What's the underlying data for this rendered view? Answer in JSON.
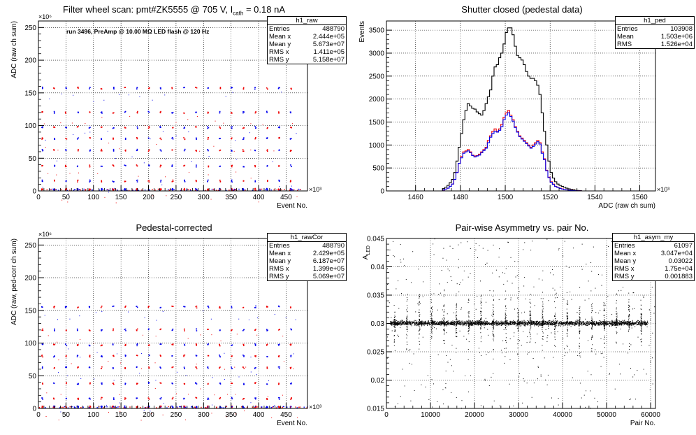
{
  "chart_data": [
    {
      "id": "p1",
      "type": "scatter",
      "title": "Filter wheel scan: pmt#ZK5555 @   705 V, I",
      "title_sub": "cath",
      "title_tail": " = 0.18 nA",
      "annotation": "run 3496, PreAmp @ 10.00 MΩ LED flash @  120 Hz",
      "xlabel": "Event No.",
      "ylabel": "ADC (raw ch sum)",
      "x_exponent": "×10³",
      "y_exponent": "×10⁶",
      "xlim": [
        0,
        488.79
      ],
      "ylim": [
        0,
        260
      ],
      "xticks": [
        0,
        50,
        100,
        150,
        200,
        250,
        300,
        350,
        400,
        450
      ],
      "yticks": [
        0,
        50,
        100,
        150,
        200,
        250
      ],
      "grid": true,
      "stats": {
        "name": "h1_raw",
        "rows": [
          [
            "Entries",
            "488790"
          ],
          [
            "Mean x",
            "2.444e+05"
          ],
          [
            "Mean y",
            "5.673e+07"
          ],
          [
            "RMS x",
            "1.411e+05"
          ],
          [
            "RMS y",
            "5.158e+07"
          ]
        ]
      },
      "levels": [
        157,
        120,
        97,
        80,
        62,
        38,
        15,
        2
      ],
      "level_colors": [
        "#0000ee",
        "#ee0000",
        "#0000ee",
        "#ee0000"
      ],
      "period": 21.5
    },
    {
      "id": "p2",
      "type": "line",
      "title": "Shutter closed (pedestal data)",
      "xlabel": "ADC (raw ch sum)",
      "ylabel": "Events",
      "x_exponent": "×10³",
      "xlim": [
        1447,
        1567
      ],
      "ylim": [
        0,
        3700
      ],
      "xticks": [
        1460,
        1480,
        1500,
        1520,
        1540,
        1560
      ],
      "yticks": [
        0,
        500,
        1000,
        1500,
        2000,
        2500,
        3000,
        3500
      ],
      "grid": true,
      "stats": {
        "name": "h1_ped",
        "rows": [
          [
            "Entries",
            "103908"
          ],
          [
            "Mean",
            "1.503e+06"
          ],
          [
            "RMS",
            "1.526e+04"
          ]
        ]
      },
      "bin_start": 1472,
      "bin_width": 1,
      "series": [
        {
          "color": "#000000",
          "values": [
            50,
            80,
            120,
            180,
            250,
            400,
            650,
            950,
            1250,
            1550,
            1750,
            1900,
            1850,
            1800,
            1780,
            1720,
            1680,
            1650,
            1750,
            1900,
            2050,
            2200,
            2500,
            2700,
            2750,
            2900,
            3000,
            3200,
            3450,
            3550,
            3550,
            3400,
            3150,
            2950,
            2900,
            2850,
            2750,
            2600,
            2500,
            2450,
            2450,
            2400,
            2300,
            2100,
            1700,
            1300,
            1000,
            650,
            400,
            280,
            200,
            150,
            120,
            100,
            80,
            60,
            45,
            35,
            25,
            15,
            10,
            6
          ]
        },
        {
          "color": "#ee0000",
          "values": [
            20,
            40,
            60,
            100,
            150,
            250,
            400,
            600,
            750,
            850,
            870,
            900,
            850,
            780,
            760,
            770,
            800,
            850,
            900,
            950,
            1100,
            1200,
            1300,
            1350,
            1300,
            1350,
            1450,
            1600,
            1700,
            1750,
            1650,
            1550,
            1400,
            1300,
            1200,
            1150,
            1100,
            1050,
            1000,
            950,
            1000,
            1050,
            1100,
            1050,
            850,
            700,
            450,
            300,
            200,
            150,
            100,
            80,
            60,
            45,
            30,
            25,
            18,
            12,
            8,
            5,
            3,
            2
          ]
        },
        {
          "color": "#0000ee",
          "values": [
            20,
            40,
            60,
            100,
            150,
            250,
            400,
            600,
            720,
            820,
            850,
            870,
            830,
            770,
            740,
            760,
            780,
            830,
            880,
            930,
            1050,
            1170,
            1250,
            1300,
            1280,
            1320,
            1400,
            1550,
            1650,
            1700,
            1620,
            1520,
            1380,
            1280,
            1180,
            1130,
            1080,
            1030,
            980,
            930,
            970,
            1020,
            1070,
            1020,
            820,
            680,
            440,
            290,
            190,
            140,
            95,
            75,
            55,
            40,
            28,
            22,
            16,
            11,
            7,
            4,
            3,
            2
          ]
        }
      ]
    },
    {
      "id": "p3",
      "type": "scatter",
      "title": "Pedestal-corrected",
      "xlabel": "Event No.",
      "ylabel": "ADC (raw, ped-corr ch sum)",
      "x_exponent": "×10³",
      "y_exponent": "×10⁶",
      "xlim": [
        0,
        488.79
      ],
      "ylim": [
        0,
        260
      ],
      "xticks": [
        0,
        50,
        100,
        150,
        200,
        250,
        300,
        350,
        400,
        450
      ],
      "yticks": [
        0,
        50,
        100,
        150,
        200,
        250
      ],
      "grid": true,
      "stats": {
        "name": "h1_rawCor",
        "rows": [
          [
            "Entries",
            "488790"
          ],
          [
            "Mean x",
            "2.429e+05"
          ],
          [
            "Mean y",
            "6.187e+07"
          ],
          [
            "RMS x",
            "1.399e+05"
          ],
          [
            "RMS y",
            "5.069e+07"
          ]
        ]
      },
      "levels": [
        155,
        120,
        97,
        80,
        62,
        38,
        15,
        2
      ],
      "level_colors": [
        "#0000ee",
        "#ee0000",
        "#0000ee",
        "#ee0000"
      ],
      "period": 21.5
    },
    {
      "id": "p4",
      "type": "scatter",
      "title": "Pair-wise Asymmetry vs. pair No.",
      "xlabel": "Pair No.",
      "ylabel": "A",
      "ylabel_sub": "LED",
      "xlim": [
        0,
        61097
      ],
      "ylim": [
        0.015,
        0.045
      ],
      "xticks": [
        0,
        10000,
        20000,
        30000,
        40000,
        50000,
        60000
      ],
      "yticks": [
        0.015,
        0.02,
        0.025,
        0.03,
        0.035,
        0.04,
        0.045
      ],
      "grid": true,
      "stats": {
        "name": "h1_asym_my",
        "rows": [
          [
            "Entries",
            "61097"
          ],
          [
            "Mean x",
            "3.047e+04"
          ],
          [
            "Mean y",
            "0.03022"
          ],
          [
            "RMS x",
            "1.75e+04"
          ],
          [
            "RMS y",
            "0.001883"
          ]
        ]
      },
      "band_center": 0.0301,
      "band_halfwidth": 0.0006,
      "spike_period": 2800
    }
  ]
}
